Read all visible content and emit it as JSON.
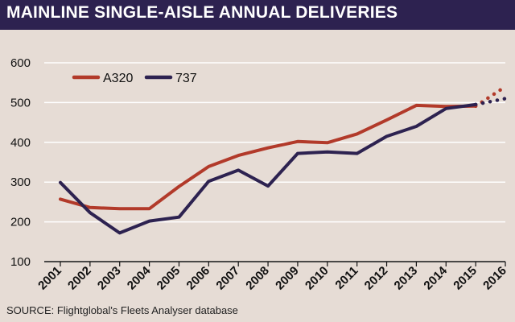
{
  "header": {
    "title": "MAINLINE SINGLE-AISLE ANNUAL DELIVERIES"
  },
  "source": "SOURCE: Flightglobal's Fleets Analyser database",
  "colors": {
    "header_bg": "#2d2250",
    "background": "#e6dcd5",
    "a320": "#b23a2a",
    "b737": "#2d2250",
    "grid": "#ffffff"
  },
  "chart_data": {
    "type": "line",
    "title": "MAINLINE SINGLE-AISLE ANNUAL DELIVERIES",
    "xlabel": "",
    "ylabel": "",
    "ylim": [
      100,
      600
    ],
    "yticks": [
      "100",
      "200",
      "300",
      "400",
      "500",
      "600"
    ],
    "categories": [
      "2001",
      "2002",
      "2003",
      "2004",
      "2005",
      "2006",
      "2007",
      "2008",
      "2009",
      "2010",
      "2011",
      "2012",
      "2013",
      "2014",
      "2015",
      "2016"
    ],
    "legend_position": "top-left",
    "series": [
      {
        "name": "A320",
        "color": "#b23a2a",
        "values": [
          257,
          236,
          233,
          233,
          289,
          339,
          367,
          386,
          402,
          399,
          421,
          456,
          493,
          490,
          491,
          null
        ],
        "projected": [
          491,
          540
        ]
      },
      {
        "name": "737",
        "color": "#2d2250",
        "values": [
          299,
          223,
          172,
          202,
          212,
          302,
          330,
          290,
          372,
          376,
          372,
          415,
          440,
          485,
          495,
          null
        ],
        "projected": [
          495,
          510
        ]
      }
    ]
  }
}
